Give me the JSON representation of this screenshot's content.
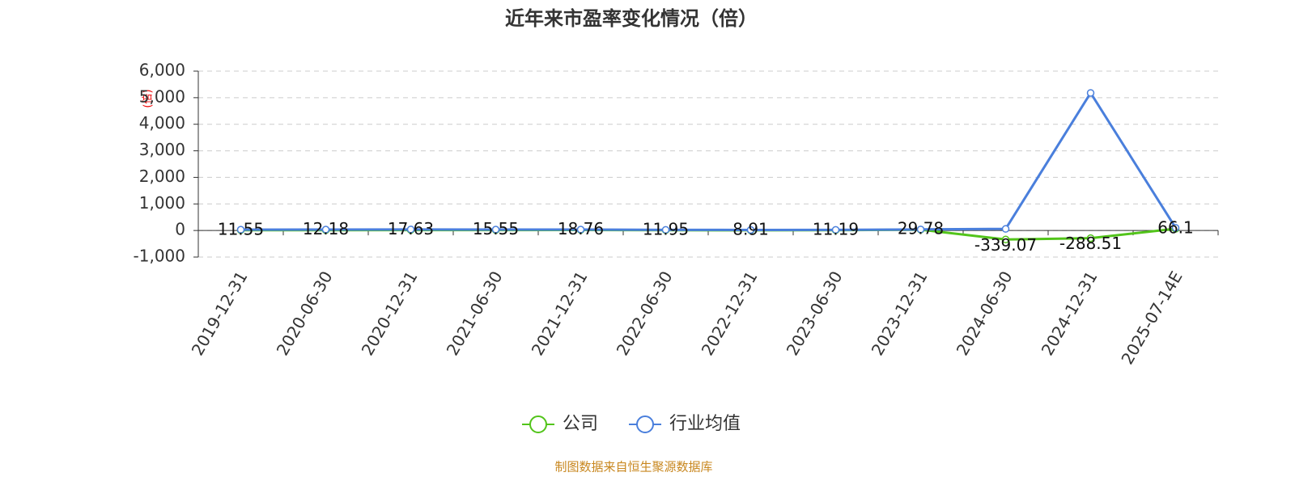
{
  "chart_data": {
    "type": "line",
    "title": "近年来市盈率变化情况（倍）",
    "y_label": "(倍)",
    "categories": [
      "2019-12-31",
      "2020-06-30",
      "2020-12-31",
      "2021-06-30",
      "2021-12-31",
      "2022-06-30",
      "2022-12-31",
      "2023-06-30",
      "2023-12-31",
      "2024-06-30",
      "2024-12-31",
      "2025-07-14E"
    ],
    "series": [
      {
        "name": "公司",
        "color": "#52c41a",
        "values": [
          11.55,
          12.18,
          17.63,
          15.55,
          18.76,
          11.95,
          8.91,
          11.19,
          29.78,
          -339.07,
          -288.51,
          66.1
        ]
      },
      {
        "name": "行业均值",
        "color": "#4a7fdc",
        "values": [
          30,
          35,
          40,
          35,
          35,
          25,
          20,
          25,
          40,
          60,
          5180,
          100
        ]
      }
    ],
    "ylim": [
      -1000,
      6000
    ],
    "yticks": [
      {
        "value": -1000,
        "label": "-1,000"
      },
      0,
      {
        "value": 1000,
        "label": "1,000"
      },
      {
        "value": 2000,
        "label": "2,000"
      },
      {
        "value": 3000,
        "label": "3,000"
      },
      {
        "value": 4000,
        "label": "4,000"
      },
      {
        "value": 5000,
        "label": "5,000"
      },
      {
        "value": 6000,
        "label": "6,000"
      }
    ],
    "grid": true,
    "source": "制图数据来自恒生聚源数据库"
  }
}
